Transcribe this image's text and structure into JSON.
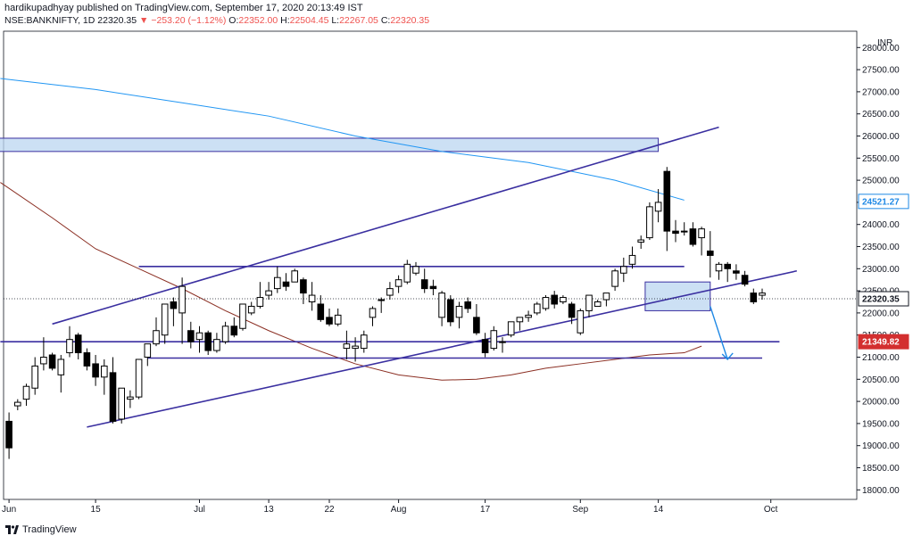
{
  "header": {
    "publisher": "hardikupadhyay published on TradingView.com, September 17, 2020 20:13:49 IST",
    "symbol": "NSE:BANKNIFTY, 1D",
    "last": "22320.35",
    "change_arrow": "▼",
    "change": "−253.20 (−1.12%)",
    "open_label": "O:",
    "open": "22352.00",
    "high_label": "H:",
    "high": "22504.45",
    "low_label": "L:",
    "low": "22267.05",
    "close_label": "C:",
    "close": "22320.35"
  },
  "footer": {
    "brand": "TradingView",
    "logo_icon": "tradingview-logo-icon"
  },
  "colors": {
    "up_candle": "#ffffff",
    "down_candle": "#000000",
    "trend_line": "#3a2fa0",
    "ma_blue": "#2196f3",
    "ma_brown": "#8b2f23",
    "zone_fill": "#bbd5f0",
    "price_tag": "#1e88e5",
    "support_tag": "#d32f2f"
  },
  "chart_data": {
    "type": "candlestick",
    "currency": "INR",
    "ylim": [
      17900,
      28300
    ],
    "y_ticks": [
      18000,
      18500,
      19000,
      19500,
      20000,
      20500,
      21000,
      21500,
      22000,
      22500,
      23000,
      23500,
      24000,
      24500,
      25000,
      25500,
      26000,
      26500,
      27000,
      27500,
      28000
    ],
    "y_tick_labels": [
      "18000.00",
      "18500.00",
      "19000.00",
      "19500.00",
      "20000.00",
      "20500.00",
      "21000.00",
      "21500.00",
      "22000.00",
      "22500.00",
      "23000.00",
      "23500.00",
      "24000.00",
      "24500.00",
      "25000.00",
      "25500.00",
      "26000.00",
      "26500.00",
      "27000.00",
      "27500.00",
      "28000.00"
    ],
    "x_labels": [
      {
        "label": "Jun",
        "index": 0
      },
      {
        "label": "15",
        "index": 10
      },
      {
        "label": "Jul",
        "index": 22
      },
      {
        "label": "13",
        "index": 30
      },
      {
        "label": "22",
        "index": 37
      },
      {
        "label": "Aug",
        "index": 45
      },
      {
        "label": "17",
        "index": 55
      },
      {
        "label": "Sep",
        "index": 66
      },
      {
        "label": "14",
        "index": 75
      },
      {
        "label": "Oct",
        "index": 88
      }
    ],
    "candles": [
      [
        19550,
        19750,
        18700,
        18950
      ],
      [
        19900,
        20050,
        19800,
        19980
      ],
      [
        20050,
        20400,
        19900,
        20340
      ],
      [
        20300,
        21000,
        20150,
        20800
      ],
      [
        20850,
        21450,
        20700,
        21000
      ],
      [
        21050,
        21100,
        20700,
        20750
      ],
      [
        20600,
        21050,
        20200,
        20950
      ],
      [
        21100,
        21700,
        21000,
        21400
      ],
      [
        21500,
        21550,
        20950,
        21100
      ],
      [
        21100,
        21200,
        20700,
        20800
      ],
      [
        20850,
        21050,
        20350,
        20550
      ],
      [
        20550,
        20950,
        20150,
        20800
      ],
      [
        20650,
        21000,
        19500,
        19550
      ],
      [
        19600,
        20300,
        19500,
        20300
      ],
      [
        20050,
        20250,
        19850,
        20100
      ],
      [
        20100,
        20900,
        20050,
        20950
      ],
      [
        21000,
        21300,
        20800,
        21300
      ],
      [
        21300,
        21900,
        21250,
        21600
      ],
      [
        21500,
        22200,
        21300,
        22200
      ],
      [
        22250,
        22350,
        21700,
        22100
      ],
      [
        22000,
        22800,
        21300,
        22600
      ],
      [
        21600,
        21800,
        21200,
        21350
      ],
      [
        21400,
        21700,
        21100,
        21550
      ],
      [
        21550,
        21600,
        21050,
        21150
      ],
      [
        21150,
        21550,
        21100,
        21400
      ],
      [
        21350,
        21800,
        21300,
        21700
      ],
      [
        21700,
        21900,
        21450,
        21500
      ],
      [
        21650,
        22200,
        21600,
        22200
      ],
      [
        22000,
        22250,
        21950,
        22150
      ],
      [
        22150,
        22700,
        22100,
        22350
      ],
      [
        22400,
        22700,
        22300,
        22500
      ],
      [
        22550,
        23050,
        22450,
        22800
      ],
      [
        22700,
        22900,
        22500,
        22600
      ],
      [
        22700,
        23000,
        22700,
        22950
      ],
      [
        22750,
        22800,
        22200,
        22450
      ],
      [
        22250,
        22700,
        22050,
        22400
      ],
      [
        22200,
        22400,
        21800,
        21850
      ],
      [
        21900,
        22100,
        21700,
        21750
      ],
      [
        21750,
        22100,
        21700,
        21950
      ],
      [
        21200,
        21600,
        20950,
        21300
      ],
      [
        21200,
        21450,
        20900,
        21250
      ],
      [
        21200,
        21600,
        21100,
        21500
      ],
      [
        21900,
        22150,
        21700,
        22100
      ],
      [
        22300,
        22350,
        22000,
        22300
      ],
      [
        22400,
        22700,
        22300,
        22550
      ],
      [
        22600,
        22850,
        22450,
        22750
      ],
      [
        22700,
        23200,
        22650,
        23100
      ],
      [
        22900,
        23150,
        22850,
        23050
      ],
      [
        22750,
        23000,
        22450,
        22550
      ],
      [
        22600,
        22750,
        22400,
        22550
      ],
      [
        21900,
        22500,
        21700,
        22450
      ],
      [
        22300,
        22400,
        21700,
        21800
      ],
      [
        21900,
        22250,
        21650,
        22150
      ],
      [
        22250,
        22350,
        22000,
        22100
      ],
      [
        21900,
        22200,
        21500,
        21550
      ],
      [
        21400,
        21550,
        21000,
        21100
      ],
      [
        21200,
        21700,
        21150,
        21600
      ],
      [
        21350,
        21450,
        21100,
        21350
      ],
      [
        21500,
        21800,
        21450,
        21800
      ],
      [
        21800,
        21900,
        21600,
        21900
      ],
      [
        21900,
        22050,
        21800,
        21950
      ],
      [
        22000,
        22250,
        21950,
        22200
      ],
      [
        22100,
        22400,
        22050,
        22350
      ],
      [
        22400,
        22500,
        22100,
        22200
      ],
      [
        22250,
        22400,
        22200,
        22350
      ],
      [
        22200,
        22250,
        21750,
        21900
      ],
      [
        21550,
        22100,
        21500,
        22050
      ],
      [
        22050,
        22400,
        21900,
        22400
      ],
      [
        22150,
        22300,
        22150,
        22250
      ],
      [
        22300,
        22400,
        22150,
        22450
      ],
      [
        22600,
        23000,
        22500,
        22950
      ],
      [
        22900,
        23250,
        22700,
        23050
      ],
      [
        23100,
        23500,
        23000,
        23300
      ],
      [
        23600,
        23750,
        23450,
        23650
      ],
      [
        23700,
        24500,
        23650,
        24400
      ],
      [
        24300,
        24800,
        24050,
        24500
      ],
      [
        25200,
        25300,
        23400,
        23850
      ],
      [
        23850,
        24100,
        23600,
        23800
      ],
      [
        23850,
        24050,
        23750,
        23850
      ],
      [
        23900,
        24050,
        23500,
        23550
      ],
      [
        23700,
        23950,
        23300,
        23900
      ],
      [
        23400,
        23850,
        22800,
        23300
      ],
      [
        22950,
        23150,
        22750,
        23100
      ],
      [
        23100,
        23150,
        22700,
        23000
      ],
      [
        22950,
        23100,
        22750,
        22900
      ],
      [
        22850,
        22950,
        22600,
        22650
      ],
      [
        22450,
        22550,
        22200,
        22250
      ],
      [
        22400,
        22550,
        22300,
        22450
      ]
    ],
    "moving_averages": [
      {
        "color": "blue",
        "points": [
          [
            -1,
            27300
          ],
          [
            10,
            27050
          ],
          [
            20,
            26750
          ],
          [
            30,
            26450
          ],
          [
            40,
            26000
          ],
          [
            50,
            25650
          ],
          [
            60,
            25400
          ],
          [
            70,
            25000
          ],
          [
            78,
            24550
          ]
        ]
      },
      {
        "color": "brown",
        "points": [
          [
            -1,
            24950
          ],
          [
            5,
            24150
          ],
          [
            10,
            23450
          ],
          [
            15,
            23000
          ],
          [
            20,
            22550
          ],
          [
            25,
            22050
          ],
          [
            30,
            21600
          ],
          [
            35,
            21200
          ],
          [
            40,
            20850
          ],
          [
            45,
            20600
          ],
          [
            50,
            20480
          ],
          [
            54,
            20500
          ],
          [
            58,
            20600
          ],
          [
            62,
            20750
          ],
          [
            66,
            20850
          ],
          [
            70,
            20950
          ],
          [
            74,
            21050
          ],
          [
            78,
            21100
          ],
          [
            80,
            21250
          ]
        ]
      }
    ],
    "trendlines": [
      {
        "name": "channel-upper",
        "points": [
          [
            5,
            21750
          ],
          [
            82,
            26200
          ]
        ]
      },
      {
        "name": "channel-lower",
        "points": [
          [
            9,
            19420
          ],
          [
            91,
            22950
          ]
        ]
      },
      {
        "name": "resistance",
        "points": [
          [
            15,
            23050
          ],
          [
            78,
            23050
          ]
        ]
      },
      {
        "name": "support",
        "points": [
          [
            -1,
            21350
          ],
          [
            89,
            21350
          ]
        ]
      },
      {
        "name": "support-lower",
        "points": [
          [
            16,
            20980
          ],
          [
            87,
            20980
          ]
        ]
      }
    ],
    "zones": [
      {
        "name": "supply-zone",
        "x_range": [
          -1,
          75
        ],
        "y_range": [
          25650,
          25950
        ]
      },
      {
        "name": "consolidation-zone",
        "x_range": [
          74,
          81
        ],
        "y_range": [
          22050,
          22700
        ]
      }
    ],
    "projection_arrow": {
      "points": [
        [
          81,
          22150
        ],
        [
          83,
          20950
        ]
      ]
    },
    "price_tags": [
      {
        "name": "ma-blue-price-tag",
        "value": "24521.27",
        "price": 24521.27,
        "color": "blue"
      },
      {
        "name": "last-price-tag",
        "value": "22320.35",
        "price": 22320.35,
        "color": "last"
      },
      {
        "name": "support-price-tag",
        "value": "21349.82",
        "price": 21349.82,
        "color": "red"
      }
    ],
    "last_price": 22320.35,
    "grid": false
  }
}
